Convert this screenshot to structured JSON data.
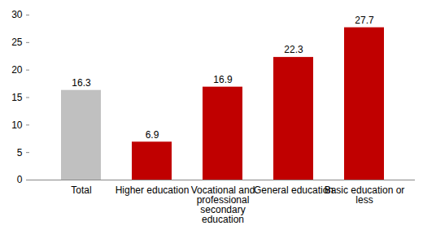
{
  "chart_data": {
    "type": "bar",
    "categories": [
      "Total",
      "Higher education",
      "Vocational and professional secondary education",
      "General education",
      "Basic education or less"
    ],
    "values": [
      16.3,
      6.9,
      16.9,
      22.3,
      27.7
    ],
    "colors": [
      "#c0c0c0",
      "#c00000",
      "#c00000",
      "#c00000",
      "#c00000"
    ],
    "ylim": [
      0,
      30
    ],
    "yticks": [
      0,
      5,
      10,
      15,
      20,
      25,
      30
    ],
    "grid": false,
    "data_labels": true
  }
}
